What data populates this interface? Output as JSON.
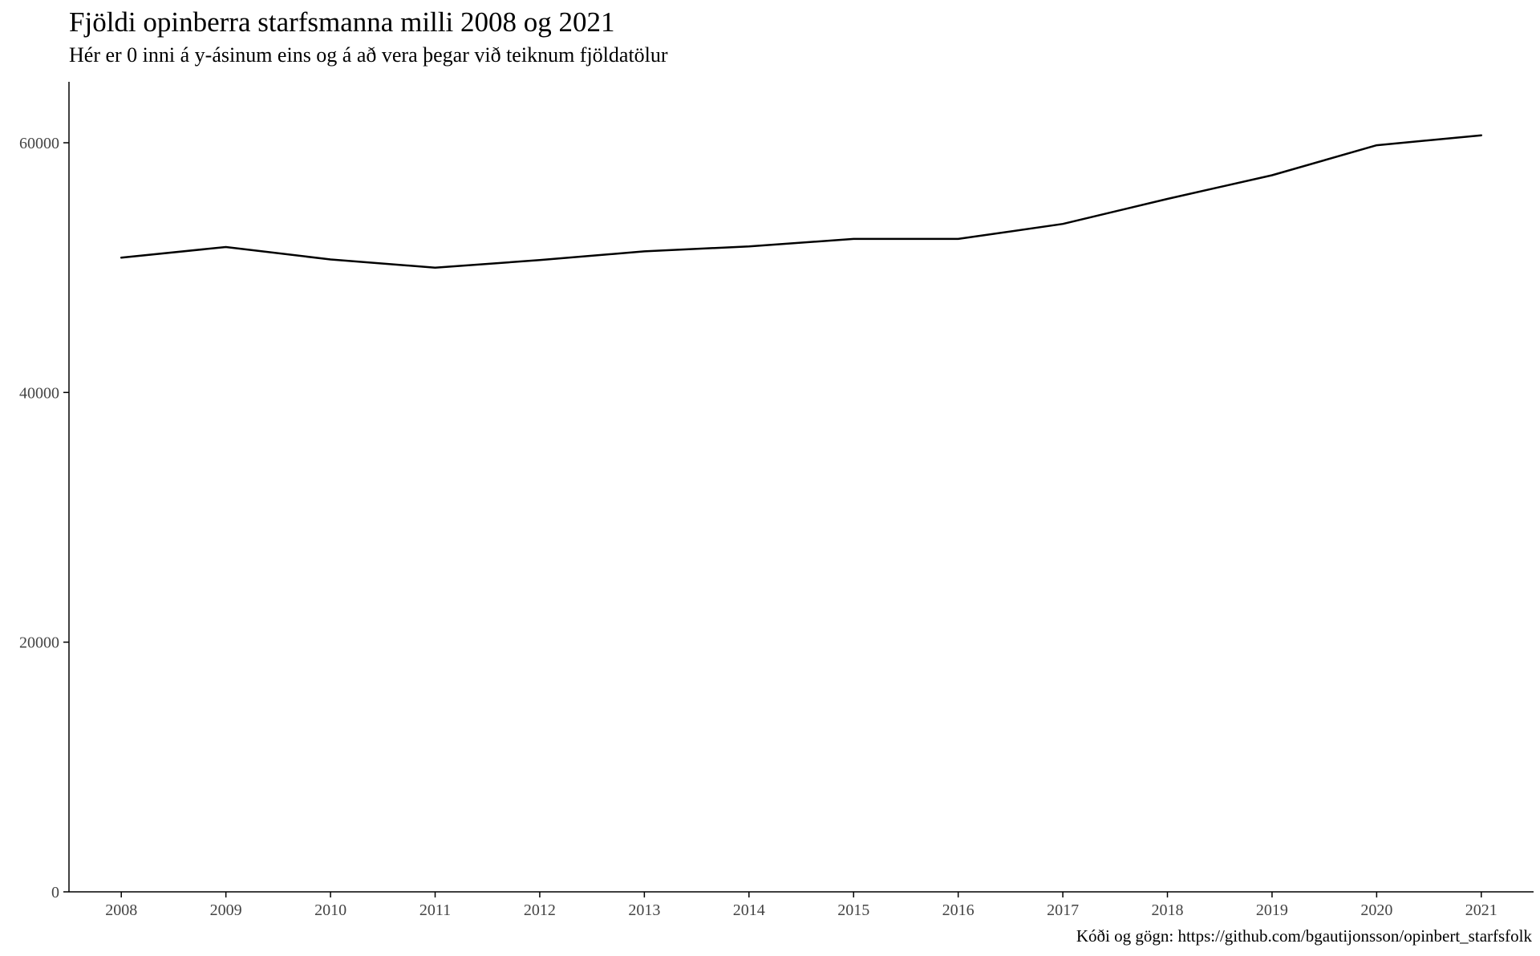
{
  "chart_data": {
    "type": "line",
    "title": "Fjöldi opinberra starfsmanna milli 2008 og 2021",
    "subtitle": "Hér er 0 inni á y-ásinum eins og á að vera þegar við teiknum fjöldatölur",
    "caption": "Kóði og gögn: https://github.com/bgautijonsson/opinbert_starfsfolk",
    "xlabel": "",
    "ylabel": "",
    "x": [
      2008,
      2009,
      2010,
      2011,
      2012,
      2013,
      2014,
      2015,
      2016,
      2017,
      2018,
      2019,
      2020,
      2021
    ],
    "series": [
      {
        "values": [
          50800,
          51650,
          50650,
          50000,
          50600,
          51300,
          51700,
          52300,
          52300,
          53500,
          55500,
          57400,
          59800,
          60600
        ],
        "color": "#000000"
      }
    ],
    "xlim": [
      2007.5,
      2021.5
    ],
    "ylim": [
      0,
      65000
    ],
    "x_ticks": [
      "2008",
      "2009",
      "2010",
      "2011",
      "2012",
      "2013",
      "2014",
      "2015",
      "2016",
      "2017",
      "2018",
      "2019",
      "2020",
      "2021"
    ],
    "y_ticks": [
      "0",
      "20000",
      "40000",
      "60000"
    ],
    "grid": false,
    "legend": "none"
  }
}
